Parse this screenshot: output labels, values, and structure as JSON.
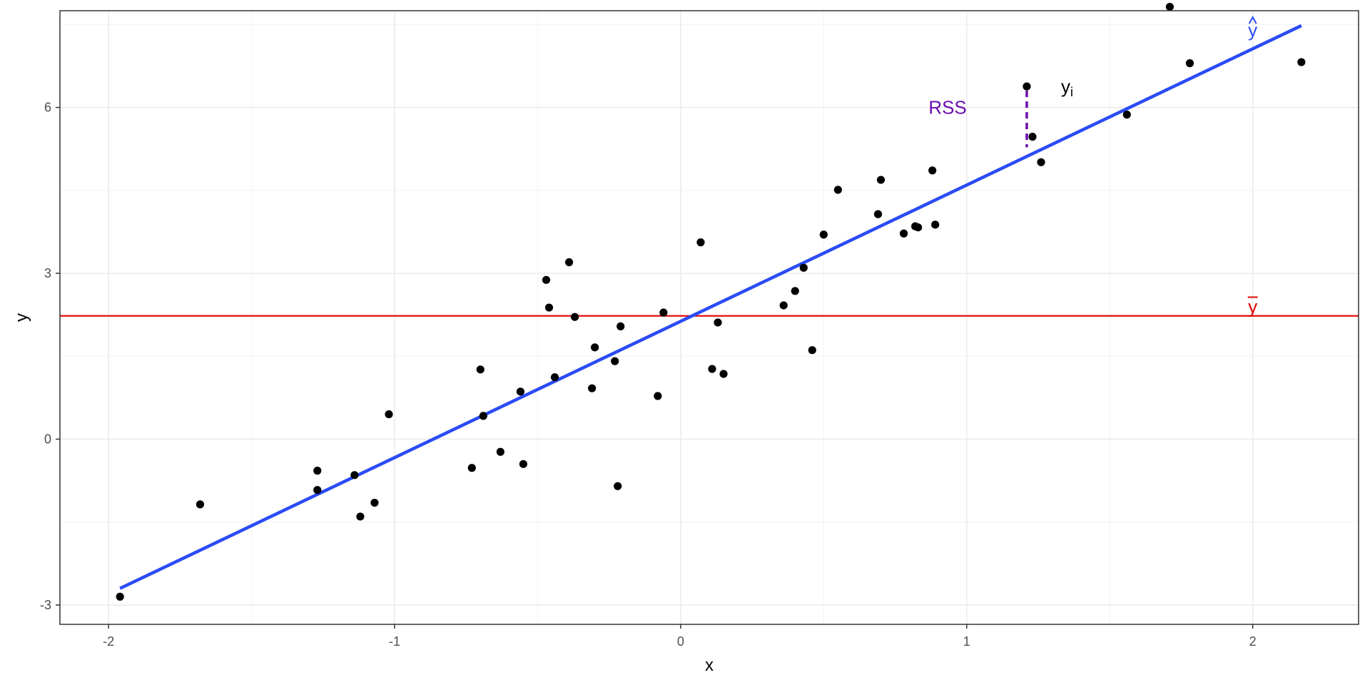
{
  "chart_data": {
    "type": "scatter",
    "title": "",
    "xlabel": "x",
    "ylabel": "y",
    "xlim": [
      -2.17,
      2.37
    ],
    "ylim": [
      -3.35,
      7.75
    ],
    "x_ticks": [
      -2,
      -1,
      0,
      1,
      2
    ],
    "x_tick_labels": [
      "-2",
      "-1",
      "0",
      "1",
      "2"
    ],
    "y_ticks": [
      -3,
      0,
      3,
      6
    ],
    "y_tick_labels": [
      "-3",
      "0",
      "3",
      "6"
    ],
    "grid": true,
    "legend": "none",
    "colors": {
      "points": "#000000",
      "fit_line": "#2a4bf5",
      "mean_line": "#e00000",
      "rss": "#6a0dad",
      "panel_border": "#333333"
    },
    "points": [
      {
        "x": -1.96,
        "y": -2.85
      },
      {
        "x": -1.68,
        "y": -1.18
      },
      {
        "x": -1.27,
        "y": -0.57
      },
      {
        "x": -1.27,
        "y": -0.92
      },
      {
        "x": -1.14,
        "y": -0.65
      },
      {
        "x": -1.12,
        "y": -1.4
      },
      {
        "x": -1.07,
        "y": -1.15
      },
      {
        "x": -1.02,
        "y": 0.45
      },
      {
        "x": -0.73,
        "y": -0.52
      },
      {
        "x": -0.7,
        "y": 1.26
      },
      {
        "x": -0.69,
        "y": 0.42
      },
      {
        "x": -0.63,
        "y": -0.23
      },
      {
        "x": -0.56,
        "y": 0.86
      },
      {
        "x": -0.55,
        "y": -0.45
      },
      {
        "x": -0.47,
        "y": 2.88
      },
      {
        "x": -0.46,
        "y": 2.38
      },
      {
        "x": -0.44,
        "y": 1.12
      },
      {
        "x": -0.39,
        "y": 3.2
      },
      {
        "x": -0.37,
        "y": 2.21
      },
      {
        "x": -0.31,
        "y": 0.92
      },
      {
        "x": -0.3,
        "y": 1.66
      },
      {
        "x": -0.23,
        "y": 1.41
      },
      {
        "x": -0.22,
        "y": -0.85
      },
      {
        "x": -0.21,
        "y": 2.04
      },
      {
        "x": -0.08,
        "y": 0.78
      },
      {
        "x": -0.06,
        "y": 2.29
      },
      {
        "x": 0.07,
        "y": 3.56
      },
      {
        "x": 0.11,
        "y": 1.27
      },
      {
        "x": 0.13,
        "y": 2.11
      },
      {
        "x": 0.15,
        "y": 1.18
      },
      {
        "x": 0.36,
        "y": 2.42
      },
      {
        "x": 0.4,
        "y": 2.68
      },
      {
        "x": 0.43,
        "y": 3.1
      },
      {
        "x": 0.46,
        "y": 1.61
      },
      {
        "x": 0.5,
        "y": 3.7
      },
      {
        "x": 0.55,
        "y": 4.51
      },
      {
        "x": 0.69,
        "y": 4.07
      },
      {
        "x": 0.7,
        "y": 4.69
      },
      {
        "x": 0.78,
        "y": 3.72
      },
      {
        "x": 0.82,
        "y": 3.85
      },
      {
        "x": 0.83,
        "y": 3.83
      },
      {
        "x": 0.88,
        "y": 4.86
      },
      {
        "x": 0.89,
        "y": 3.88
      },
      {
        "x": 1.21,
        "y": 6.38
      },
      {
        "x": 1.23,
        "y": 5.47
      },
      {
        "x": 1.26,
        "y": 5.01
      },
      {
        "x": 1.56,
        "y": 5.87
      },
      {
        "x": 1.71,
        "y": 7.82
      },
      {
        "x": 1.78,
        "y": 6.8
      },
      {
        "x": 2.17,
        "y": 6.82
      }
    ],
    "fit_line": {
      "x": [
        -1.96,
        2.17
      ],
      "y": [
        -2.7,
        7.48
      ]
    },
    "mean_y": 2.23,
    "rss_segment": {
      "x": 1.21,
      "y_from": 6.38,
      "y_to": 5.28
    },
    "annotations": [
      {
        "text": "RSS",
        "x": 1.0,
        "y": 6.0,
        "color": "#6a0dad",
        "anchor": "end"
      },
      {
        "text": "y",
        "sub": "i",
        "x": 1.27,
        "y": 6.38,
        "color": "#000000",
        "anchor": "start"
      },
      {
        "text": "y",
        "accent": "hat",
        "x": 2.0,
        "y": 7.4,
        "color": "#2a4bf5",
        "anchor": "middle"
      },
      {
        "text": "y",
        "accent": "bar",
        "x": 2.0,
        "y": 2.4,
        "color": "#e00000",
        "anchor": "middle"
      }
    ]
  }
}
